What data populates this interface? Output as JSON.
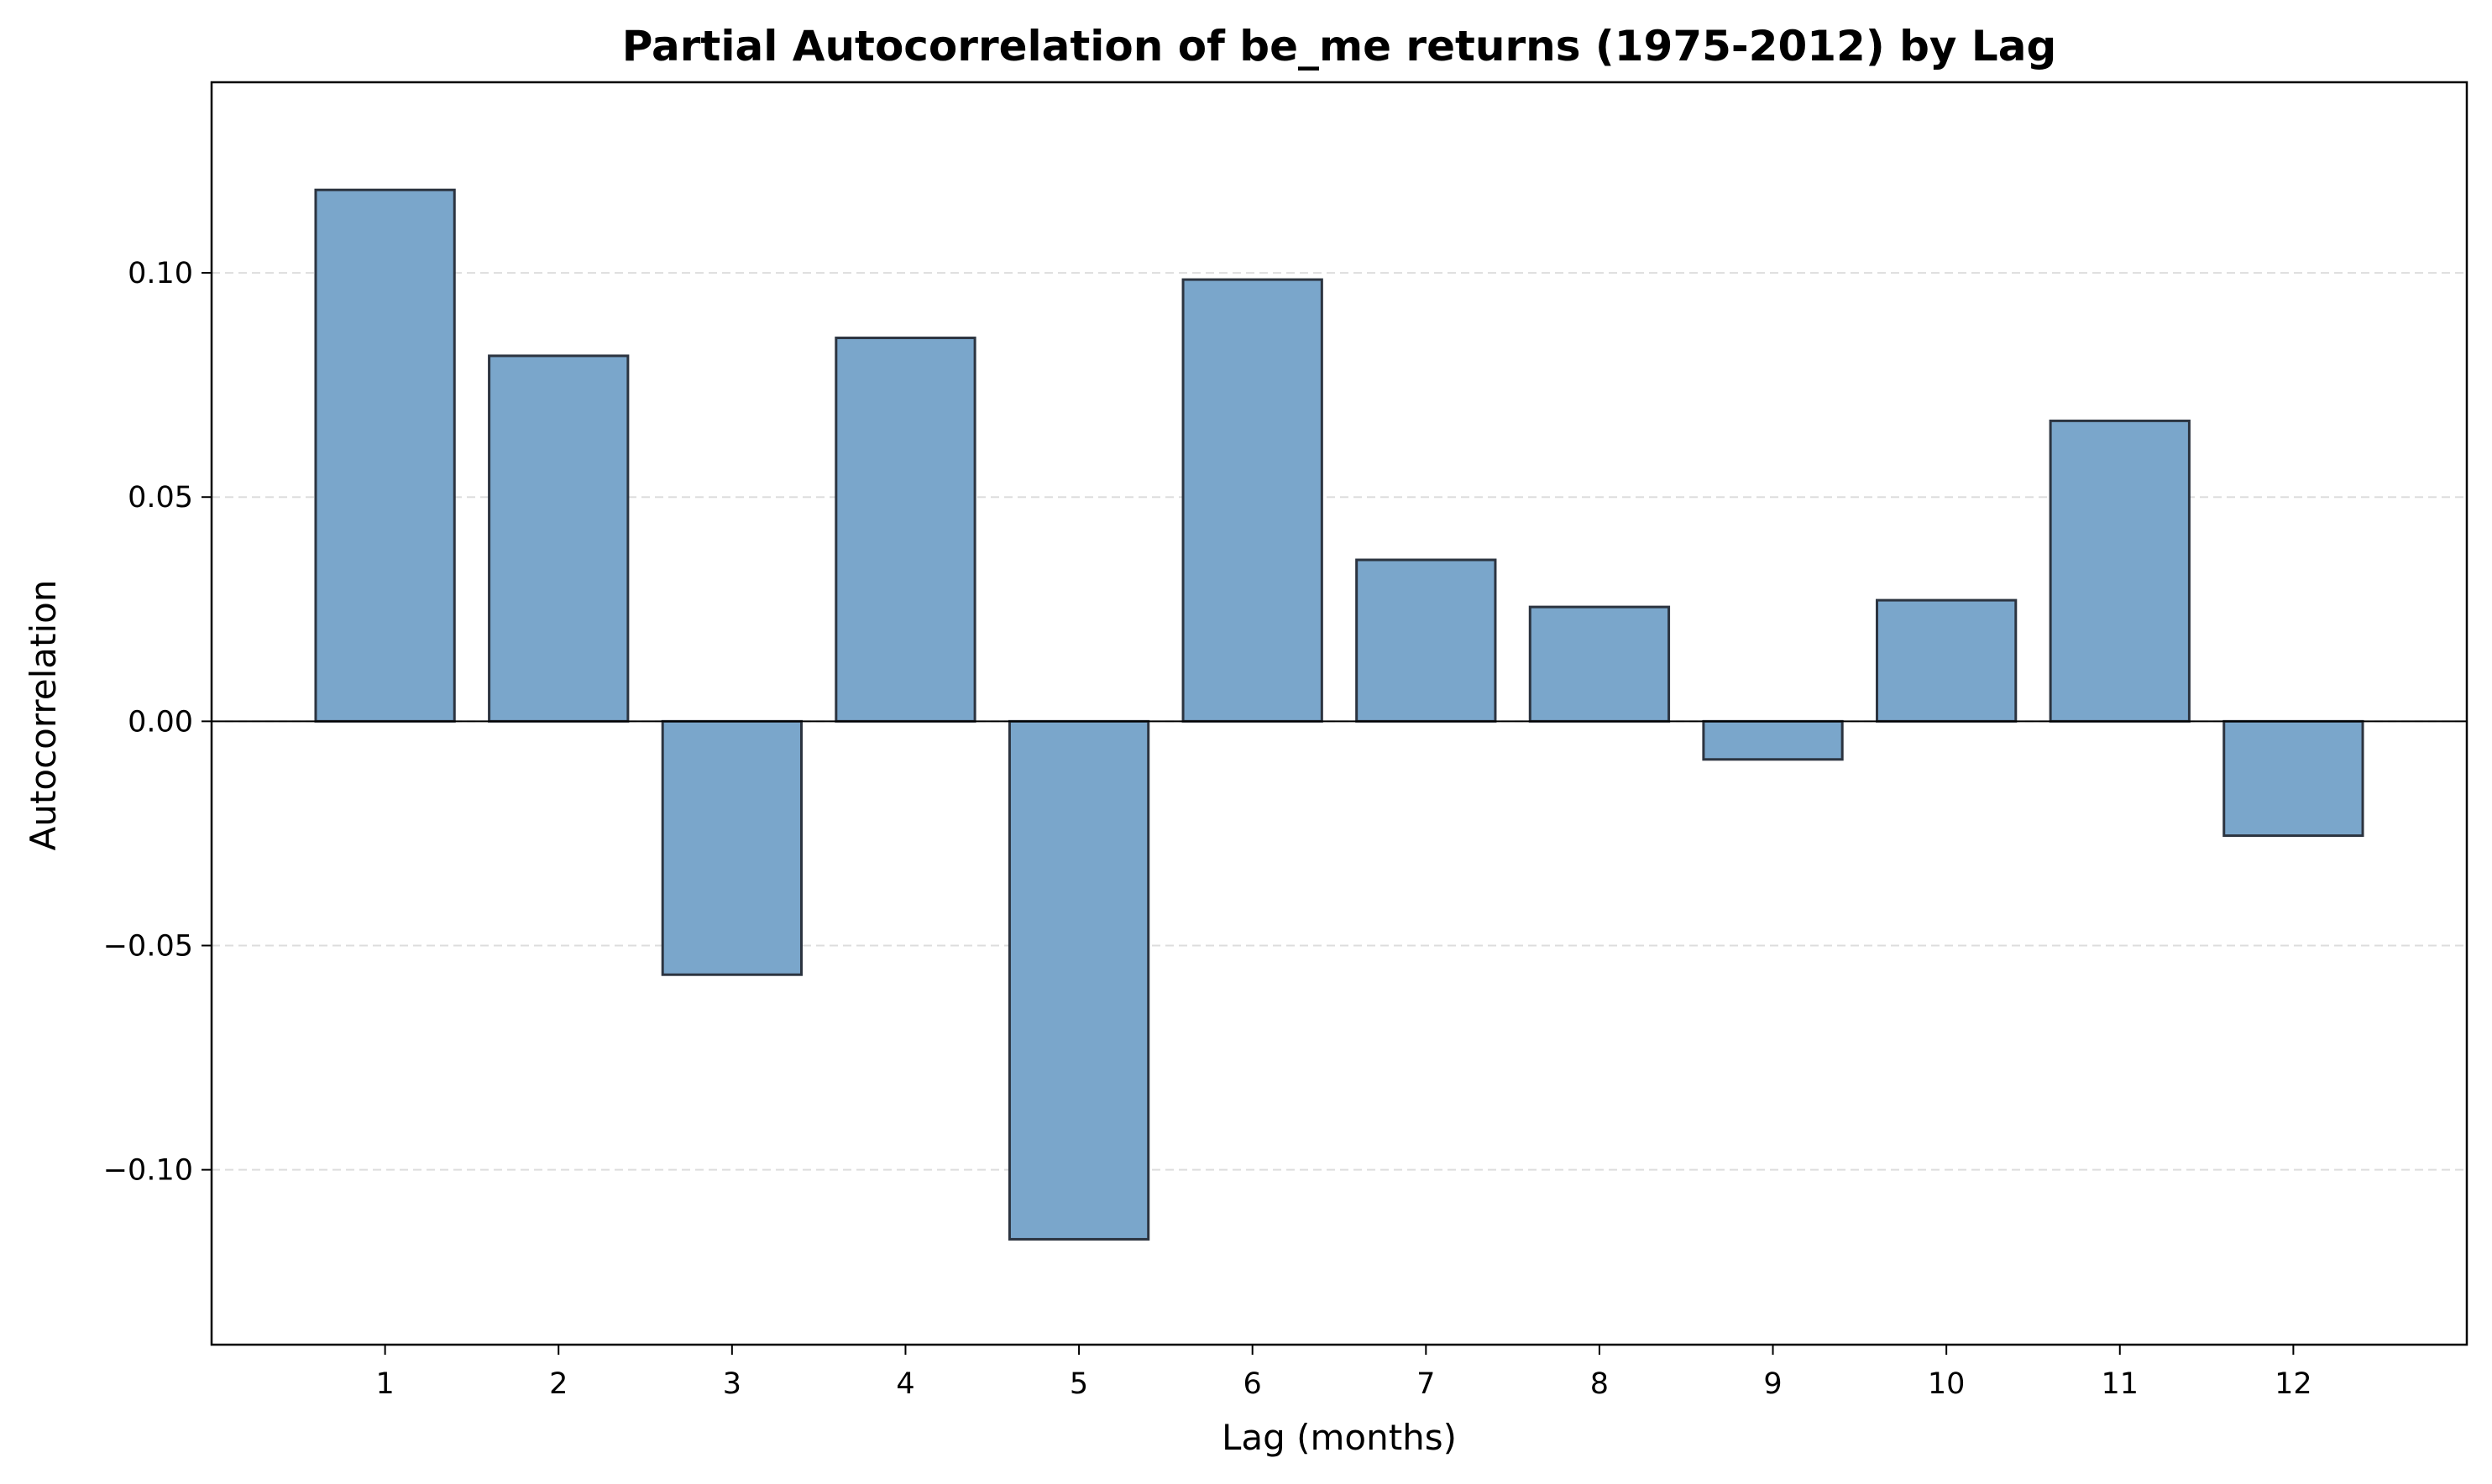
{
  "chart_data": {
    "type": "bar",
    "title": "Partial Autocorrelation of be_me returns (1975-2012) by Lag",
    "xlabel": "Lag (months)",
    "ylabel": "Autocorrelation",
    "categories": [
      "1",
      "2",
      "3",
      "4",
      "5",
      "6",
      "7",
      "8",
      "9",
      "10",
      "11",
      "12"
    ],
    "values": [
      0.1185,
      0.0815,
      -0.0565,
      0.0855,
      -0.1155,
      0.0985,
      0.036,
      0.0255,
      -0.0085,
      0.027,
      0.067,
      -0.0255
    ],
    "ylim": [
      -0.139,
      0.1425
    ],
    "yticks": [
      -0.1,
      -0.05,
      0.0,
      0.05,
      0.1
    ],
    "ytick_labels": [
      "−0.10",
      "−0.05",
      "0.00",
      "0.05",
      "0.10"
    ],
    "grid": "horizontal dashed",
    "zero_line": true,
    "colors": {
      "bar_fill": "#7aa6cb",
      "bar_edge": "#2c3440",
      "grid": "#dddddd"
    }
  }
}
